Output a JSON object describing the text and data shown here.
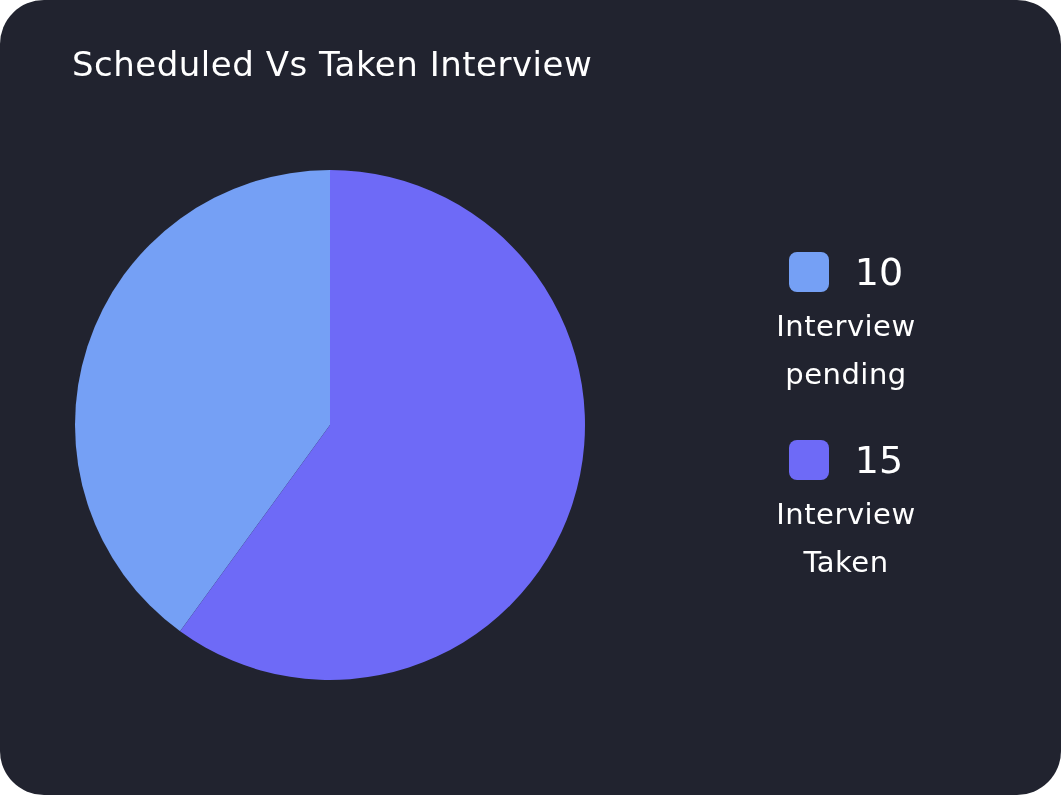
{
  "chart_data": {
    "type": "pie",
    "title": "Scheduled Vs Taken Interview",
    "categories": [
      "Interview pending",
      "Interview Taken"
    ],
    "values": [
      10,
      15
    ],
    "colors": [
      "#75a0f5",
      "#6e6af7"
    ],
    "data_labels": true,
    "legend": "right"
  }
}
